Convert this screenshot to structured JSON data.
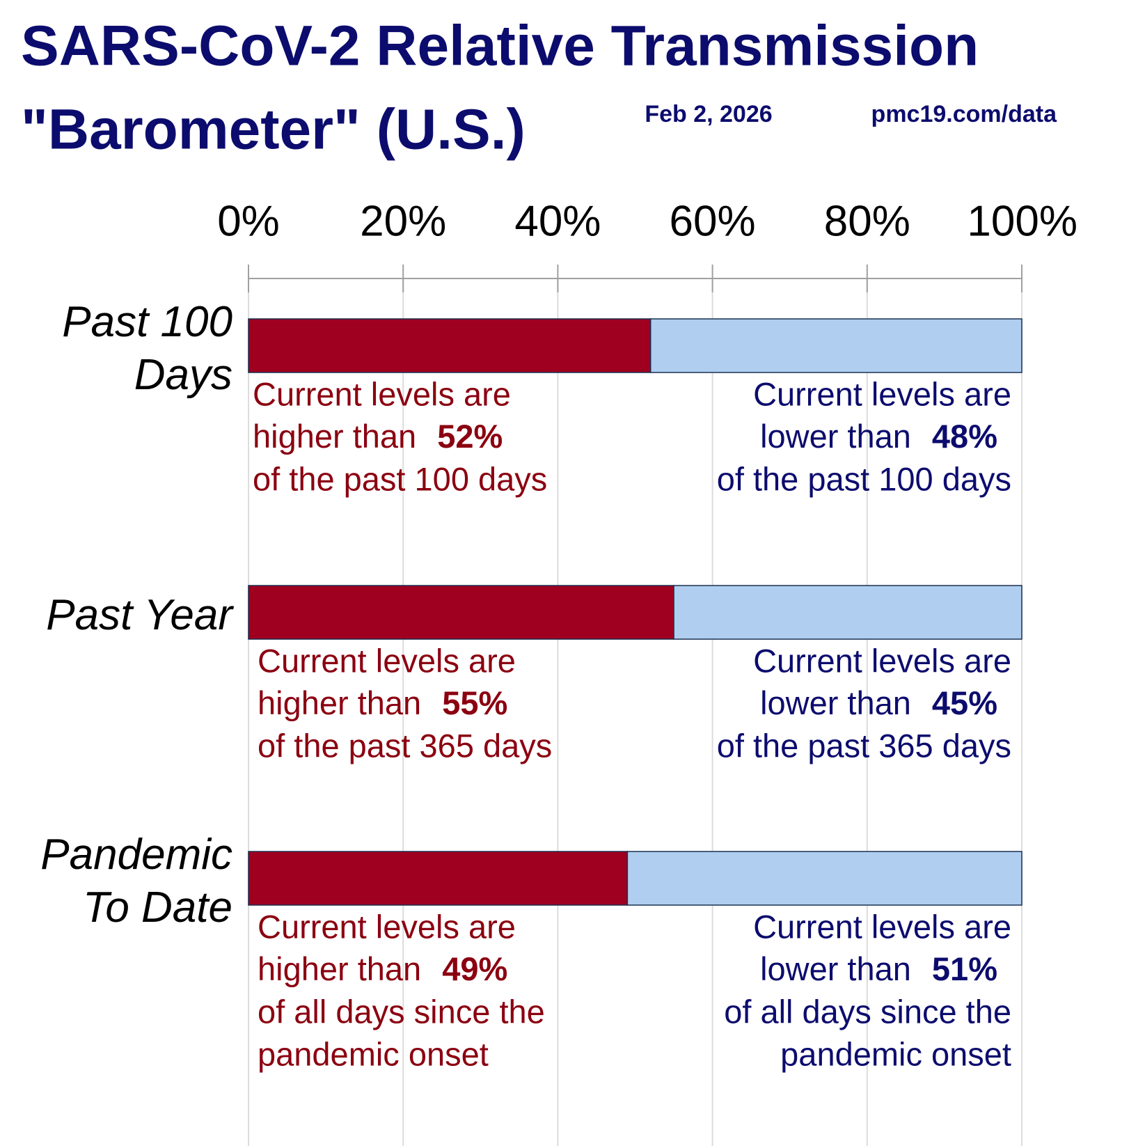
{
  "chart_data": {
    "type": "stacked_bar_horizontal",
    "title": [
      "SARS-CoV-2 Relative Transmission",
      "\"Barometer\" (U.S.)"
    ],
    "date": "Feb 2, 2026",
    "source": "pmc19.com/data",
    "categories": [
      "Past 100 Days",
      "Past Year",
      "Pandemic To Date"
    ],
    "series": [
      {
        "color": "#a00020",
        "text_color": "#8b0010",
        "values": [
          52,
          55,
          49
        ],
        "value_labels": [
          "52%",
          "55%",
          "49%"
        ],
        "label_lines": [
          "Current levels are",
          "higher than"
        ]
      },
      {
        "color": "#b0cff0",
        "text_color": "#0c0c6e",
        "values": [
          48,
          45,
          51
        ],
        "value_labels": [
          "48%",
          "45%",
          "51%"
        ],
        "label_lines": [
          "Current levels are",
          "lower than"
        ]
      }
    ],
    "label_suffix": [
      [
        "of the past 100 days"
      ],
      [
        "of the past 365 days"
      ],
      [
        "of all days since the",
        "pandemic onset"
      ]
    ],
    "xlim": [
      0,
      100
    ],
    "xticks": [
      {
        "value": 0,
        "label": "0%"
      },
      {
        "value": 20,
        "label": "20%"
      },
      {
        "value": 40,
        "label": "40%"
      },
      {
        "value": 60,
        "label": "60%"
      },
      {
        "value": 80,
        "label": "80%"
      },
      {
        "value": 100,
        "label": "100%"
      }
    ],
    "grid": true
  }
}
